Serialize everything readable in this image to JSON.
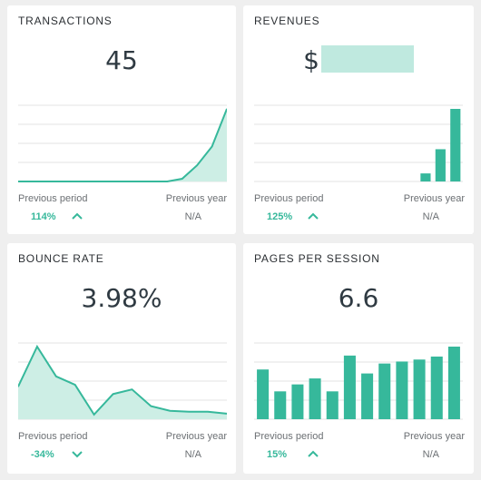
{
  "colors": {
    "accent": "#36b89b",
    "area_fill": "#cdeee5",
    "grid": "#e3e3e3"
  },
  "cards": [
    {
      "title": "TRANSACTIONS",
      "value": "45",
      "prev_period_label": "Previous period",
      "prev_year_label": "Previous year",
      "prev_period_value": "114%",
      "prev_period_direction": "up",
      "prev_year_value": "N/A",
      "chart": {
        "type": "area",
        "values": [
          0,
          0,
          0,
          0,
          0,
          0,
          0,
          0,
          0,
          0,
          0,
          1,
          6,
          13,
          27
        ]
      }
    },
    {
      "title": "REVENUES",
      "value_prefix": "$",
      "value_redacted": true,
      "prev_period_label": "Previous period",
      "prev_year_label": "Previous year",
      "prev_period_value": "125%",
      "prev_period_direction": "up",
      "prev_year_value": "N/A",
      "chart": {
        "type": "bar",
        "values": [
          0,
          0,
          0,
          0,
          0,
          0,
          0,
          0,
          0,
          0,
          0,
          2,
          8,
          18
        ]
      }
    },
    {
      "title": "BOUNCE RATE",
      "value": "3.98%",
      "prev_period_label": "Previous period",
      "prev_year_label": "Previous year",
      "prev_period_value": "-34%",
      "prev_period_direction": "down",
      "prev_year_value": "N/A",
      "chart": {
        "type": "area",
        "values": [
          35,
          78,
          46,
          37,
          5,
          27,
          32,
          14,
          9,
          8,
          8,
          6
        ]
      }
    },
    {
      "title": "PAGES PER SESSION",
      "value": "6.6",
      "prev_period_label": "Previous period",
      "prev_year_label": "Previous year",
      "prev_period_value": "15%",
      "prev_period_direction": "up",
      "prev_year_value": "N/A",
      "chart": {
        "type": "bar",
        "values": [
          5.0,
          2.8,
          3.5,
          4.1,
          2.8,
          6.4,
          4.6,
          5.6,
          5.8,
          6.0,
          6.3,
          7.3
        ]
      }
    }
  ]
}
